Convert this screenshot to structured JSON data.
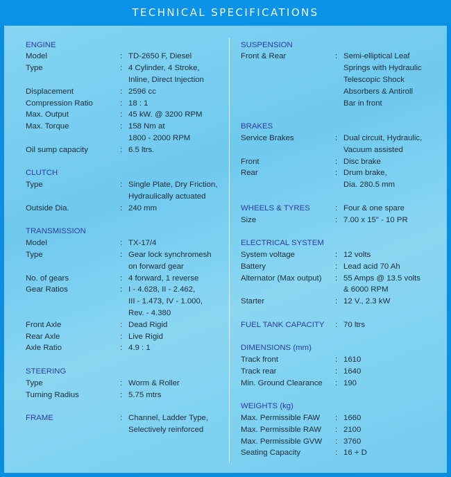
{
  "title": "TECHNICAL SPECIFICATIONS",
  "colors": {
    "frame": "#0b8ee0",
    "panel": "#7fcfee",
    "heading": "#2b3c9e",
    "text": "#1d2b3a"
  },
  "left_column": [
    {
      "heading": "ENGINE",
      "rows": [
        {
          "label": "Model",
          "value": [
            "TD-2650 F, Diesel"
          ]
        },
        {
          "label": "Type",
          "value": [
            "4 Cylinder, 4 Stroke,",
            "Inline, Direct Injection"
          ]
        },
        {
          "label": "Displacement",
          "value": [
            "2596 cc"
          ]
        },
        {
          "label": "Compression Ratio",
          "value": [
            "18 : 1"
          ]
        },
        {
          "label": "Max. Output",
          "value": [
            "45 kW. @ 3200 RPM"
          ]
        },
        {
          "label": "Max. Torque",
          "value": [
            "158 Nm at",
            "1800 - 2000 RPM"
          ]
        },
        {
          "label": "Oil sump capacity",
          "value": [
            "6.5 ltrs."
          ]
        }
      ]
    },
    {
      "heading": "CLUTCH",
      "rows": [
        {
          "label": "Type",
          "value": [
            "Single Plate, Dry Friction,",
            "Hydraulically actuated"
          ]
        },
        {
          "label": "Outside Dia.",
          "value": [
            "240 mm"
          ]
        }
      ]
    },
    {
      "heading": "TRANSMISSION",
      "rows": [
        {
          "label": "Model",
          "value": [
            "TX-17/4"
          ]
        },
        {
          "label": "Type",
          "value": [
            "Gear lock synchromesh",
            "on forward gear"
          ]
        },
        {
          "label": "No. of gears",
          "value": [
            "4 forward, 1 reverse"
          ]
        },
        {
          "label": "Gear Ratios",
          "value": [
            "I - 4.628, II - 2.462,",
            "III - 1.473, IV - 1.000,",
            "Rev. - 4.380"
          ]
        },
        {
          "label": "Front Axle",
          "value": [
            "Dead Rigid"
          ]
        },
        {
          "label": "Rear Axle",
          "value": [
            "Live Rigid"
          ]
        },
        {
          "label": "Axle Ratio",
          "value": [
            "4.9 : 1"
          ]
        }
      ]
    },
    {
      "heading": "STEERING",
      "rows": [
        {
          "label": "Type",
          "value": [
            "Worm & Roller"
          ]
        },
        {
          "label": "Turning Radius",
          "value": [
            "5.75 mtrs"
          ]
        }
      ]
    },
    {
      "heading": "FRAME",
      "heading_value": [
        "Channel, Ladder Type,",
        "Selectively reinforced"
      ],
      "rows": []
    }
  ],
  "right_column": [
    {
      "heading": "SUSPENSION",
      "rows": [
        {
          "label": "Front & Rear",
          "value": [
            "Semi-elliptical Leaf",
            "Springs with Hydraulic",
            "Telescopic Shock",
            "Absorbers & Antiroll",
            "Bar in front"
          ]
        }
      ]
    },
    {
      "heading": "BRAKES",
      "rows": [
        {
          "label": "Service Brakes",
          "value": [
            "Dual circuit, Hydraulic,",
            "Vacuum assisted"
          ]
        },
        {
          "label": "Front",
          "value": [
            "Disc brake"
          ]
        },
        {
          "label": "Rear",
          "value": [
            "Drum brake,",
            "Dia. 280.5 mm"
          ]
        }
      ]
    },
    {
      "heading": "WHEELS & TYRES",
      "heading_value": [
        "Four & one spare"
      ],
      "rows": [
        {
          "label": "Size",
          "value": [
            "7.00 x 15\" - 10 PR"
          ]
        }
      ]
    },
    {
      "heading": "ELECTRICAL SYSTEM",
      "rows": [
        {
          "label": "System voltage",
          "value": [
            "12 volts"
          ]
        },
        {
          "label": "Battery",
          "value": [
            "Lead acid 70 Ah"
          ]
        },
        {
          "label": "Alternator (Max output)",
          "value": [
            "55 Amps @ 13.5 volts",
            "& 6000 RPM"
          ]
        },
        {
          "label": "Starter",
          "value": [
            "12 V., 2.3 kW"
          ]
        }
      ]
    },
    {
      "heading": "FUEL TANK CAPACITY",
      "heading_value": [
        "70 ltrs"
      ],
      "rows": []
    },
    {
      "heading": "DIMENSIONS (mm)",
      "rows": [
        {
          "label": "Track front",
          "value": [
            "1610"
          ]
        },
        {
          "label": "Track rear",
          "value": [
            "1640"
          ]
        },
        {
          "label": "Min. Ground Clearance",
          "value": [
            "190"
          ]
        }
      ]
    },
    {
      "heading": "WEIGHTS (kg)",
      "rows": [
        {
          "label": "Max. Permissible FAW",
          "value": [
            "1660"
          ]
        },
        {
          "label": "Max. Permissible RAW",
          "value": [
            "2100"
          ]
        },
        {
          "label": "Max. Permissible GVW",
          "value": [
            "3760"
          ]
        },
        {
          "label": "Seating Capacity",
          "value": [
            "16 + D"
          ]
        }
      ]
    }
  ]
}
